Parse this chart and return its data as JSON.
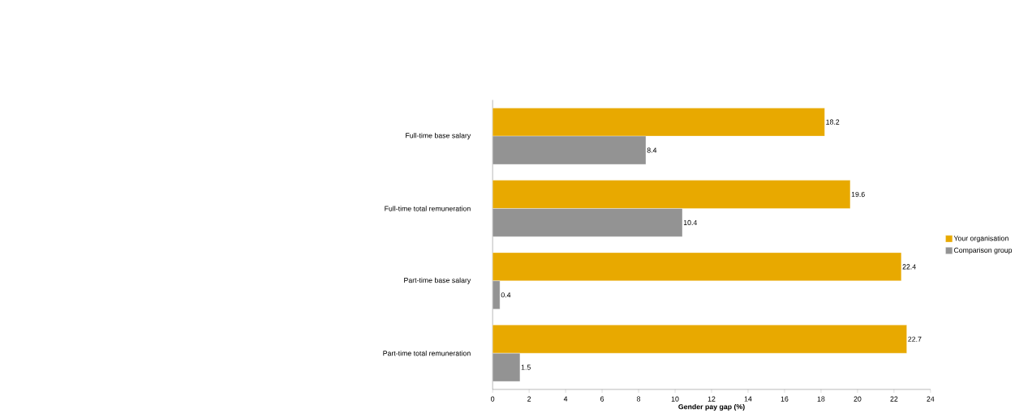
{
  "chart_data": {
    "type": "bar",
    "orientation": "horizontal",
    "xlabel": "Gender pay gap (%)",
    "categories": [
      "Full-time base salary",
      "Full-time total remuneration",
      "Part-time base salary",
      "Part-time total remuneration"
    ],
    "series": [
      {
        "name": "Your organisation",
        "color": "#e8a900",
        "values": [
          18.2,
          19.6,
          22.4,
          22.7
        ]
      },
      {
        "name": "Comparison group",
        "color": "#939393",
        "values": [
          8.4,
          10.4,
          0.4,
          1.5
        ]
      }
    ],
    "xlim": [
      0,
      24
    ],
    "xticks": [
      0,
      2,
      4,
      6,
      8,
      10,
      12,
      14,
      16,
      18,
      20,
      22,
      24
    ],
    "data_labels": true,
    "legend": "right",
    "grid": false
  }
}
